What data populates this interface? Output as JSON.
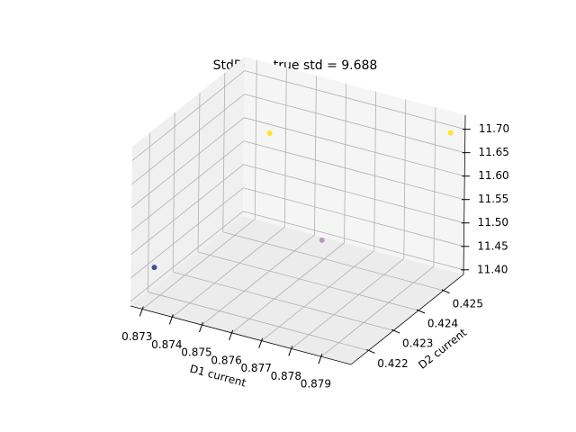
{
  "chart_data": {
    "type": "scatter3d",
    "title": "StdDevs, true std = 9.688",
    "xlabel": "D1 current",
    "ylabel": "D2 current",
    "x": [
      0.8733,
      0.8752,
      0.8755,
      0.8796
    ],
    "y": [
      0.4214,
      0.4237,
      0.4255,
      0.4257
    ],
    "z": [
      11.48,
      11.7,
      11.4,
      11.69
    ],
    "colors": [
      "#3b528b",
      "#fde725",
      "#b896be",
      "#fde725"
    ],
    "xlim": [
      0.8726,
      0.88
    ],
    "ylim": [
      0.4213,
      0.4258
    ],
    "zlim": [
      11.39,
      11.73
    ],
    "xticks": [
      0.873,
      0.874,
      0.875,
      0.876,
      0.877,
      0.878,
      0.879
    ],
    "yticks": [
      0.422,
      0.423,
      0.424,
      0.425
    ],
    "zticks": [
      {
        "value": 11.4,
        "label": "11.40"
      },
      11.45,
      {
        "value": 11.5,
        "label": "11.50"
      },
      11.55,
      {
        "value": 11.6,
        "label": "11.60"
      },
      11.65,
      {
        "value": 11.7,
        "label": "11.70"
      }
    ],
    "grid": true
  }
}
